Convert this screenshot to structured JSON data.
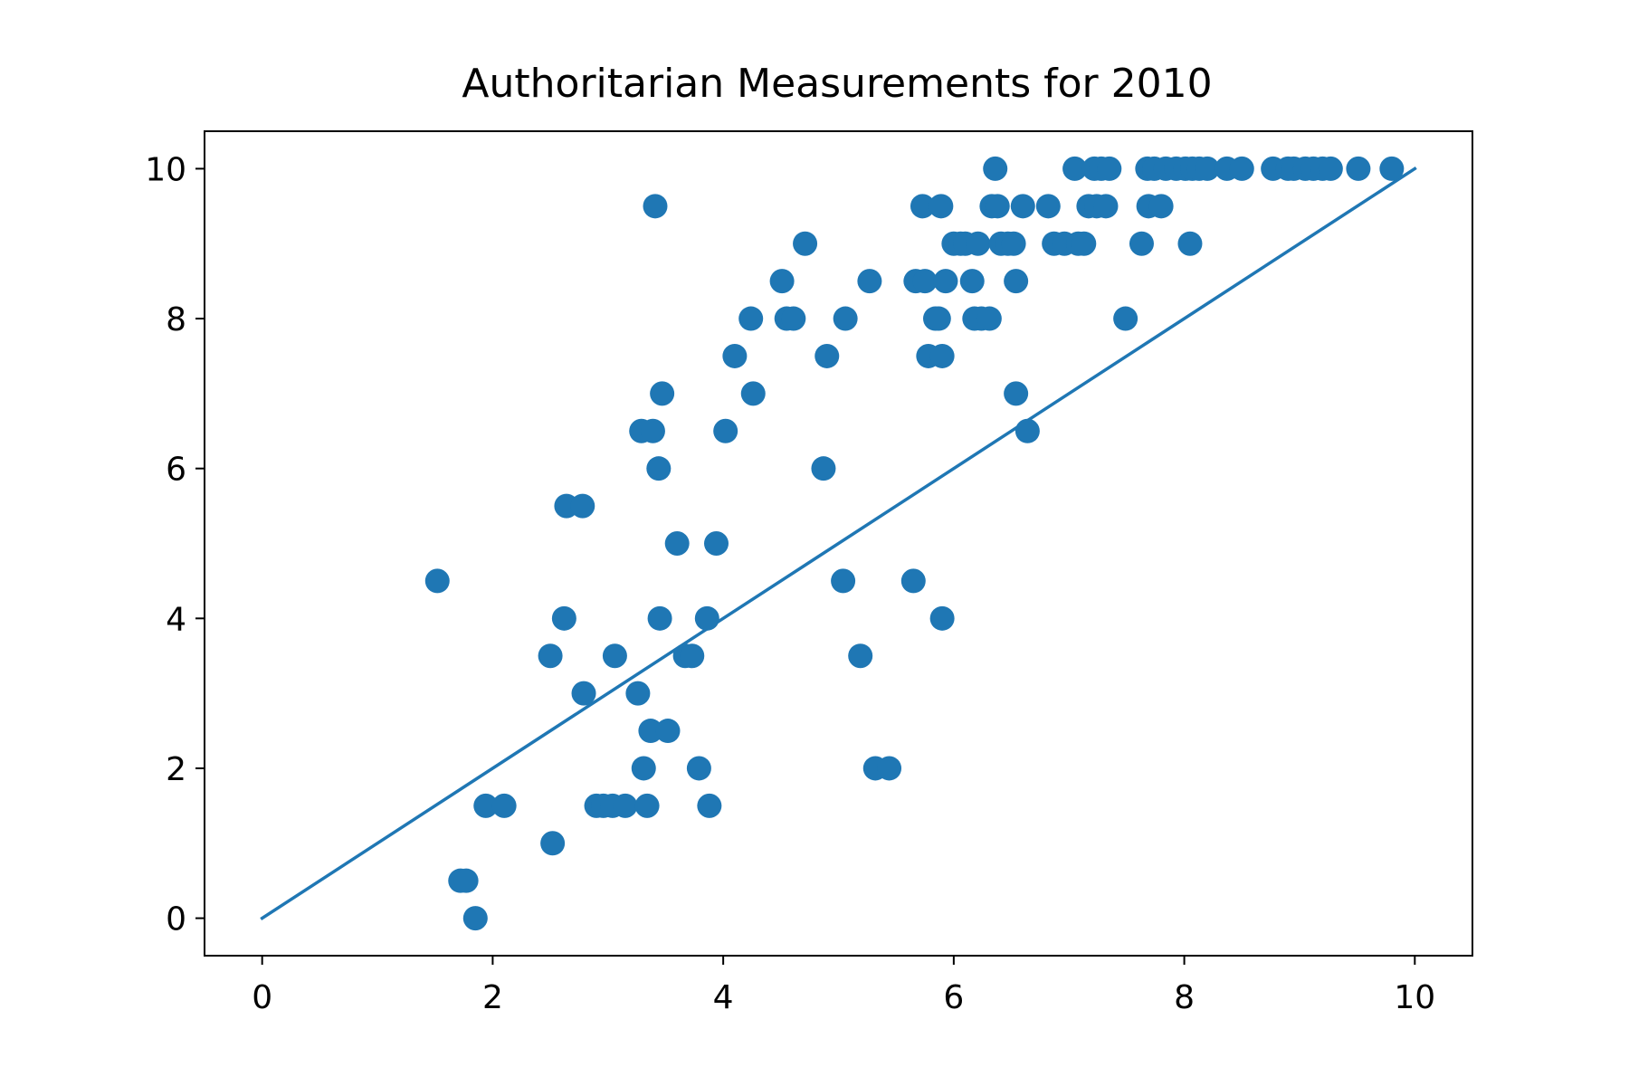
{
  "chart_data": {
    "type": "scatter",
    "title": "Authoritarian Measurements for 2010",
    "xlabel": "",
    "ylabel": "",
    "xlim": [
      -0.5,
      10.5
    ],
    "ylim": [
      -0.5,
      10.5
    ],
    "xticks": [
      0,
      2,
      4,
      6,
      8,
      10
    ],
    "yticks": [
      0,
      2,
      4,
      6,
      8,
      10
    ],
    "xtick_labels": [
      "0",
      "2",
      "4",
      "6",
      "8",
      "10"
    ],
    "ytick_labels": [
      "0",
      "2",
      "4",
      "6",
      "8",
      "10"
    ],
    "grid": false,
    "color": "#1f77b4",
    "reference_line": {
      "x": [
        0,
        10
      ],
      "y": [
        0,
        10
      ]
    },
    "points": [
      [
        1.52,
        4.5
      ],
      [
        1.72,
        0.5
      ],
      [
        1.77,
        0.5
      ],
      [
        1.85,
        0.0
      ],
      [
        1.94,
        1.5
      ],
      [
        2.1,
        1.5
      ],
      [
        2.5,
        3.5
      ],
      [
        2.52,
        1.0
      ],
      [
        2.62,
        4.0
      ],
      [
        2.64,
        5.5
      ],
      [
        2.78,
        5.5
      ],
      [
        2.79,
        3.0
      ],
      [
        2.9,
        1.5
      ],
      [
        2.96,
        1.5
      ],
      [
        3.04,
        1.5
      ],
      [
        3.06,
        3.5
      ],
      [
        3.15,
        1.5
      ],
      [
        3.26,
        3.0
      ],
      [
        3.29,
        6.5
      ],
      [
        3.31,
        2.0
      ],
      [
        3.34,
        1.5
      ],
      [
        3.37,
        2.5
      ],
      [
        3.39,
        6.5
      ],
      [
        3.41,
        9.5
      ],
      [
        3.44,
        6.0
      ],
      [
        3.45,
        4.0
      ],
      [
        3.47,
        7.0
      ],
      [
        3.52,
        2.5
      ],
      [
        3.6,
        5.0
      ],
      [
        3.67,
        3.5
      ],
      [
        3.73,
        3.5
      ],
      [
        3.79,
        2.0
      ],
      [
        3.86,
        4.0
      ],
      [
        3.88,
        1.5
      ],
      [
        3.94,
        5.0
      ],
      [
        4.02,
        6.5
      ],
      [
        4.1,
        7.5
      ],
      [
        4.24,
        8.0
      ],
      [
        4.26,
        7.0
      ],
      [
        4.51,
        8.5
      ],
      [
        4.55,
        8.0
      ],
      [
        4.61,
        8.0
      ],
      [
        4.71,
        9.0
      ],
      [
        4.87,
        6.0
      ],
      [
        4.9,
        7.5
      ],
      [
        5.04,
        4.5
      ],
      [
        5.06,
        8.0
      ],
      [
        5.19,
        3.5
      ],
      [
        5.27,
        8.5
      ],
      [
        5.32,
        2.0
      ],
      [
        5.44,
        2.0
      ],
      [
        5.65,
        4.5
      ],
      [
        5.67,
        8.5
      ],
      [
        5.73,
        9.5
      ],
      [
        5.75,
        8.5
      ],
      [
        5.78,
        7.5
      ],
      [
        5.84,
        8.0
      ],
      [
        5.87,
        8.0
      ],
      [
        5.9,
        7.5
      ],
      [
        5.89,
        9.5
      ],
      [
        5.9,
        4.0
      ],
      [
        5.93,
        8.5
      ],
      [
        6.0,
        9.0
      ],
      [
        6.06,
        9.0
      ],
      [
        6.1,
        9.0
      ],
      [
        6.16,
        8.5
      ],
      [
        6.18,
        8.0
      ],
      [
        6.21,
        9.0
      ],
      [
        6.24,
        8.0
      ],
      [
        6.31,
        8.0
      ],
      [
        6.33,
        9.5
      ],
      [
        6.36,
        10.0
      ],
      [
        6.38,
        9.5
      ],
      [
        6.41,
        9.0
      ],
      [
        6.47,
        9.0
      ],
      [
        6.52,
        9.0
      ],
      [
        6.54,
        8.5
      ],
      [
        6.54,
        7.0
      ],
      [
        6.6,
        9.5
      ],
      [
        6.64,
        6.5
      ],
      [
        6.82,
        9.5
      ],
      [
        6.87,
        9.0
      ],
      [
        6.96,
        9.0
      ],
      [
        7.05,
        10.0
      ],
      [
        7.08,
        9.0
      ],
      [
        7.13,
        9.0
      ],
      [
        7.17,
        9.5
      ],
      [
        7.22,
        10.0
      ],
      [
        7.24,
        9.5
      ],
      [
        7.28,
        10.0
      ],
      [
        7.32,
        9.5
      ],
      [
        7.35,
        10.0
      ],
      [
        7.49,
        8.0
      ],
      [
        7.63,
        9.0
      ],
      [
        7.68,
        10.0
      ],
      [
        7.69,
        9.5
      ],
      [
        7.74,
        10.0
      ],
      [
        7.8,
        9.5
      ],
      [
        7.84,
        10.0
      ],
      [
        7.93,
        10.0
      ],
      [
        8.01,
        10.0
      ],
      [
        8.05,
        9.0
      ],
      [
        8.07,
        10.0
      ],
      [
        8.13,
        10.0
      ],
      [
        8.2,
        10.0
      ],
      [
        8.37,
        10.0
      ],
      [
        8.5,
        10.0
      ],
      [
        8.77,
        10.0
      ],
      [
        8.9,
        10.0
      ],
      [
        8.95,
        10.0
      ],
      [
        9.05,
        10.0
      ],
      [
        9.12,
        10.0
      ],
      [
        9.2,
        10.0
      ],
      [
        9.27,
        10.0
      ],
      [
        9.51,
        10.0
      ],
      [
        9.8,
        10.0
      ]
    ]
  }
}
